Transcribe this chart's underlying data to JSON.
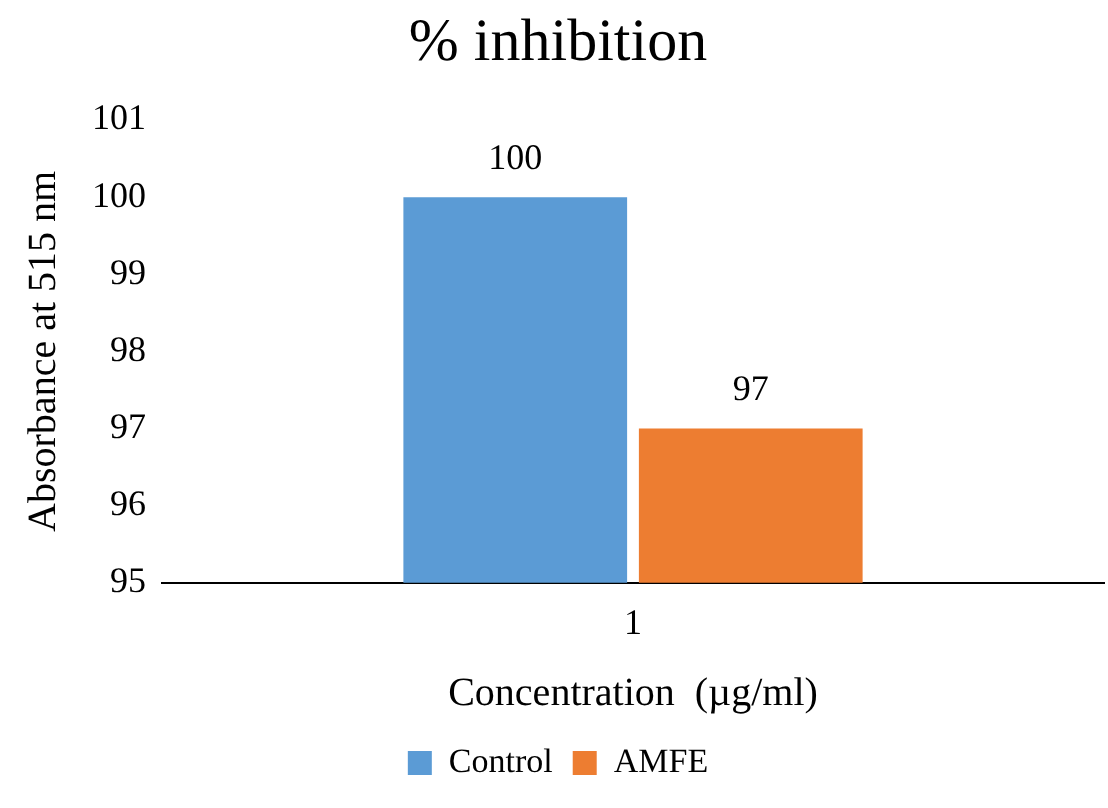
{
  "chart_data": {
    "type": "bar",
    "title": "% inhibition",
    "xlabel": "Concentration  (µg/ml)",
    "ylabel": "Absorbance at 515 nm",
    "categories": [
      "1"
    ],
    "series": [
      {
        "name": "Control",
        "color": "#5b9bd5",
        "values": [
          100
        ]
      },
      {
        "name": "AMFE",
        "color": "#ed7d31",
        "values": [
          97
        ]
      }
    ],
    "ylim": [
      95,
      101
    ],
    "yticks": [
      95,
      96,
      97,
      98,
      99,
      100,
      101
    ],
    "grid": false,
    "legend": "bottom",
    "data_labels": true
  }
}
